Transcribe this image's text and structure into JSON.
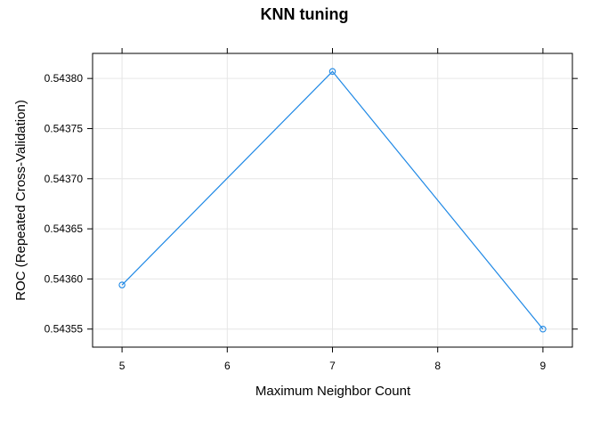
{
  "chart_data": {
    "type": "line",
    "title": "KNN tuning",
    "xlabel": "Maximum Neighbor Count",
    "ylabel": "ROC (Repeated Cross-Validation)",
    "x": [
      5,
      7,
      9
    ],
    "y": [
      0.543594,
      0.543807,
      0.54355
    ],
    "x_ticks": [
      5,
      6,
      7,
      8,
      9
    ],
    "x_tick_labels": [
      "5",
      "6",
      "7",
      "8",
      "9"
    ],
    "y_ticks": [
      0.54355,
      0.5436,
      0.54365,
      0.5437,
      0.54375,
      0.5438
    ],
    "y_tick_labels": [
      "0.54355",
      "0.54360",
      "0.54365",
      "0.54370",
      "0.54375",
      "0.54380"
    ],
    "xlim": [
      4.72,
      9.28
    ],
    "ylim": [
      0.543532,
      0.543825
    ],
    "grid": true,
    "legend": "none",
    "series_color": "#1E88E5",
    "grid_color": "#E6E6E6"
  }
}
